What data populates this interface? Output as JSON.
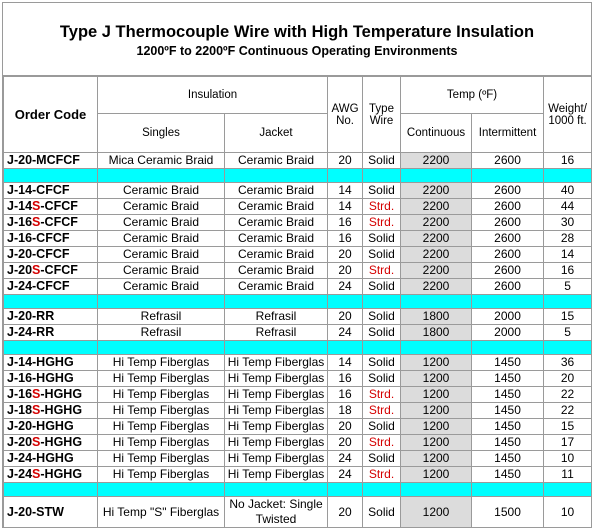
{
  "title": "Type J Thermocouple Wire with High Temperature Insulation",
  "subtitle": "1200ºF to 2200ºF Continuous Operating Environments",
  "headers": {
    "order_code": "Order Code",
    "insulation": "Insulation",
    "singles": "Singles",
    "jacket": "Jacket",
    "awg": "AWG No.",
    "type_wire": "Type Wire",
    "temp": "Temp (ºF)",
    "continuous": "Continuous",
    "intermittent": "Intermittent",
    "weight": "Weight/ 1000 ft."
  },
  "groups": [
    [
      {
        "code_a": "J-20-MCFCF",
        "code_s": "",
        "code_b": "",
        "singles": "Mica Ceramic Braid",
        "jacket": "Ceramic Braid",
        "awg": "20",
        "type": "Solid",
        "cont": "2200",
        "inter": "2600",
        "weight": "16"
      }
    ],
    [
      {
        "code_a": "J-14-CFCF",
        "code_s": "",
        "code_b": "",
        "singles": "Ceramic Braid",
        "jacket": "Ceramic Braid",
        "awg": "14",
        "type": "Solid",
        "cont": "2200",
        "inter": "2600",
        "weight": "40"
      },
      {
        "code_a": "J-14",
        "code_s": "S",
        "code_b": "-CFCF",
        "singles": "Ceramic Braid",
        "jacket": "Ceramic Braid",
        "awg": "14",
        "type": "Strd.",
        "cont": "2200",
        "inter": "2600",
        "weight": "44"
      },
      {
        "code_a": "J-16",
        "code_s": "S",
        "code_b": "-CFCF",
        "singles": "Ceramic Braid",
        "jacket": "Ceramic Braid",
        "awg": "16",
        "type": "Strd.",
        "cont": "2200",
        "inter": "2600",
        "weight": "30"
      },
      {
        "code_a": "J-16-CFCF",
        "code_s": "",
        "code_b": "",
        "singles": "Ceramic Braid",
        "jacket": "Ceramic Braid",
        "awg": "16",
        "type": "Solid",
        "cont": "2200",
        "inter": "2600",
        "weight": "28"
      },
      {
        "code_a": "J-20-CFCF",
        "code_s": "",
        "code_b": "",
        "singles": "Ceramic Braid",
        "jacket": "Ceramic Braid",
        "awg": "20",
        "type": "Solid",
        "cont": "2200",
        "inter": "2600",
        "weight": "14"
      },
      {
        "code_a": "J-20",
        "code_s": "S",
        "code_b": "-CFCF",
        "singles": "Ceramic Braid",
        "jacket": "Ceramic Braid",
        "awg": "20",
        "type": "Strd.",
        "cont": "2200",
        "inter": "2600",
        "weight": "16"
      },
      {
        "code_a": "J-24-CFCF",
        "code_s": "",
        "code_b": "",
        "singles": "Ceramic Braid",
        "jacket": "Ceramic Braid",
        "awg": "24",
        "type": "Solid",
        "cont": "2200",
        "inter": "2600",
        "weight": "5"
      }
    ],
    [
      {
        "code_a": "J-20-RR",
        "code_s": "",
        "code_b": "",
        "singles": "Refrasil",
        "jacket": "Refrasil",
        "awg": "20",
        "type": "Solid",
        "cont": "1800",
        "inter": "2000",
        "weight": "15"
      },
      {
        "code_a": "J-24-RR",
        "code_s": "",
        "code_b": "",
        "singles": "Refrasil",
        "jacket": "Refrasil",
        "awg": "24",
        "type": "Solid",
        "cont": "1800",
        "inter": "2000",
        "weight": "5"
      }
    ],
    [
      {
        "code_a": "J-14-HGHG",
        "code_s": "",
        "code_b": "",
        "singles": "Hi Temp Fiberglas",
        "jacket": "Hi Temp Fiberglas",
        "awg": "14",
        "type": "Solid",
        "cont": "1200",
        "inter": "1450",
        "weight": "36"
      },
      {
        "code_a": "J-16-HGHG",
        "code_s": "",
        "code_b": "",
        "singles": "Hi Temp Fiberglas",
        "jacket": "Hi Temp Fiberglas",
        "awg": "16",
        "type": "Solid",
        "cont": "1200",
        "inter": "1450",
        "weight": "20"
      },
      {
        "code_a": "J-16",
        "code_s": "S",
        "code_b": "-HGHG",
        "singles": "Hi Temp Fiberglas",
        "jacket": "Hi Temp Fiberglas",
        "awg": "16",
        "type": "Strd.",
        "cont": "1200",
        "inter": "1450",
        "weight": "22"
      },
      {
        "code_a": "J-18",
        "code_s": "S",
        "code_b": "-HGHG",
        "singles": "Hi Temp Fiberglas",
        "jacket": "Hi Temp Fiberglas",
        "awg": "18",
        "type": "Strd.",
        "cont": "1200",
        "inter": "1450",
        "weight": "22"
      },
      {
        "code_a": "J-20-HGHG",
        "code_s": "",
        "code_b": "",
        "singles": "Hi Temp Fiberglas",
        "jacket": "Hi Temp Fiberglas",
        "awg": "20",
        "type": "Solid",
        "cont": "1200",
        "inter": "1450",
        "weight": "15"
      },
      {
        "code_a": "J-20",
        "code_s": "S",
        "code_b": "-HGHG",
        "singles": "Hi Temp Fiberglas",
        "jacket": "Hi Temp Fiberglas",
        "awg": "20",
        "type": "Strd.",
        "cont": "1200",
        "inter": "1450",
        "weight": "17"
      },
      {
        "code_a": "J-24-HGHG",
        "code_s": "",
        "code_b": "",
        "singles": "Hi Temp Fiberglas",
        "jacket": "Hi Temp Fiberglas",
        "awg": "24",
        "type": "Solid",
        "cont": "1200",
        "inter": "1450",
        "weight": "10"
      },
      {
        "code_a": "J-24",
        "code_s": "S",
        "code_b": "-HGHG",
        "singles": "Hi Temp Fiberglas",
        "jacket": "Hi Temp Fiberglas",
        "awg": "24",
        "type": "Strd.",
        "cont": "1200",
        "inter": "1450",
        "weight": "11"
      }
    ],
    [
      {
        "code_a": "J-20-STW",
        "code_s": "",
        "code_b": "",
        "singles": "Hi Temp \"S\" Fiberglas",
        "jacket": "No Jacket: Single Twisted",
        "awg": "20",
        "type": "Solid",
        "cont": "1200",
        "inter": "1500",
        "weight": "10",
        "tall": true
      }
    ]
  ],
  "colors": {
    "separator": "#00ffff",
    "shade": "#dcdcdc",
    "stranded_text": "#d40000"
  }
}
